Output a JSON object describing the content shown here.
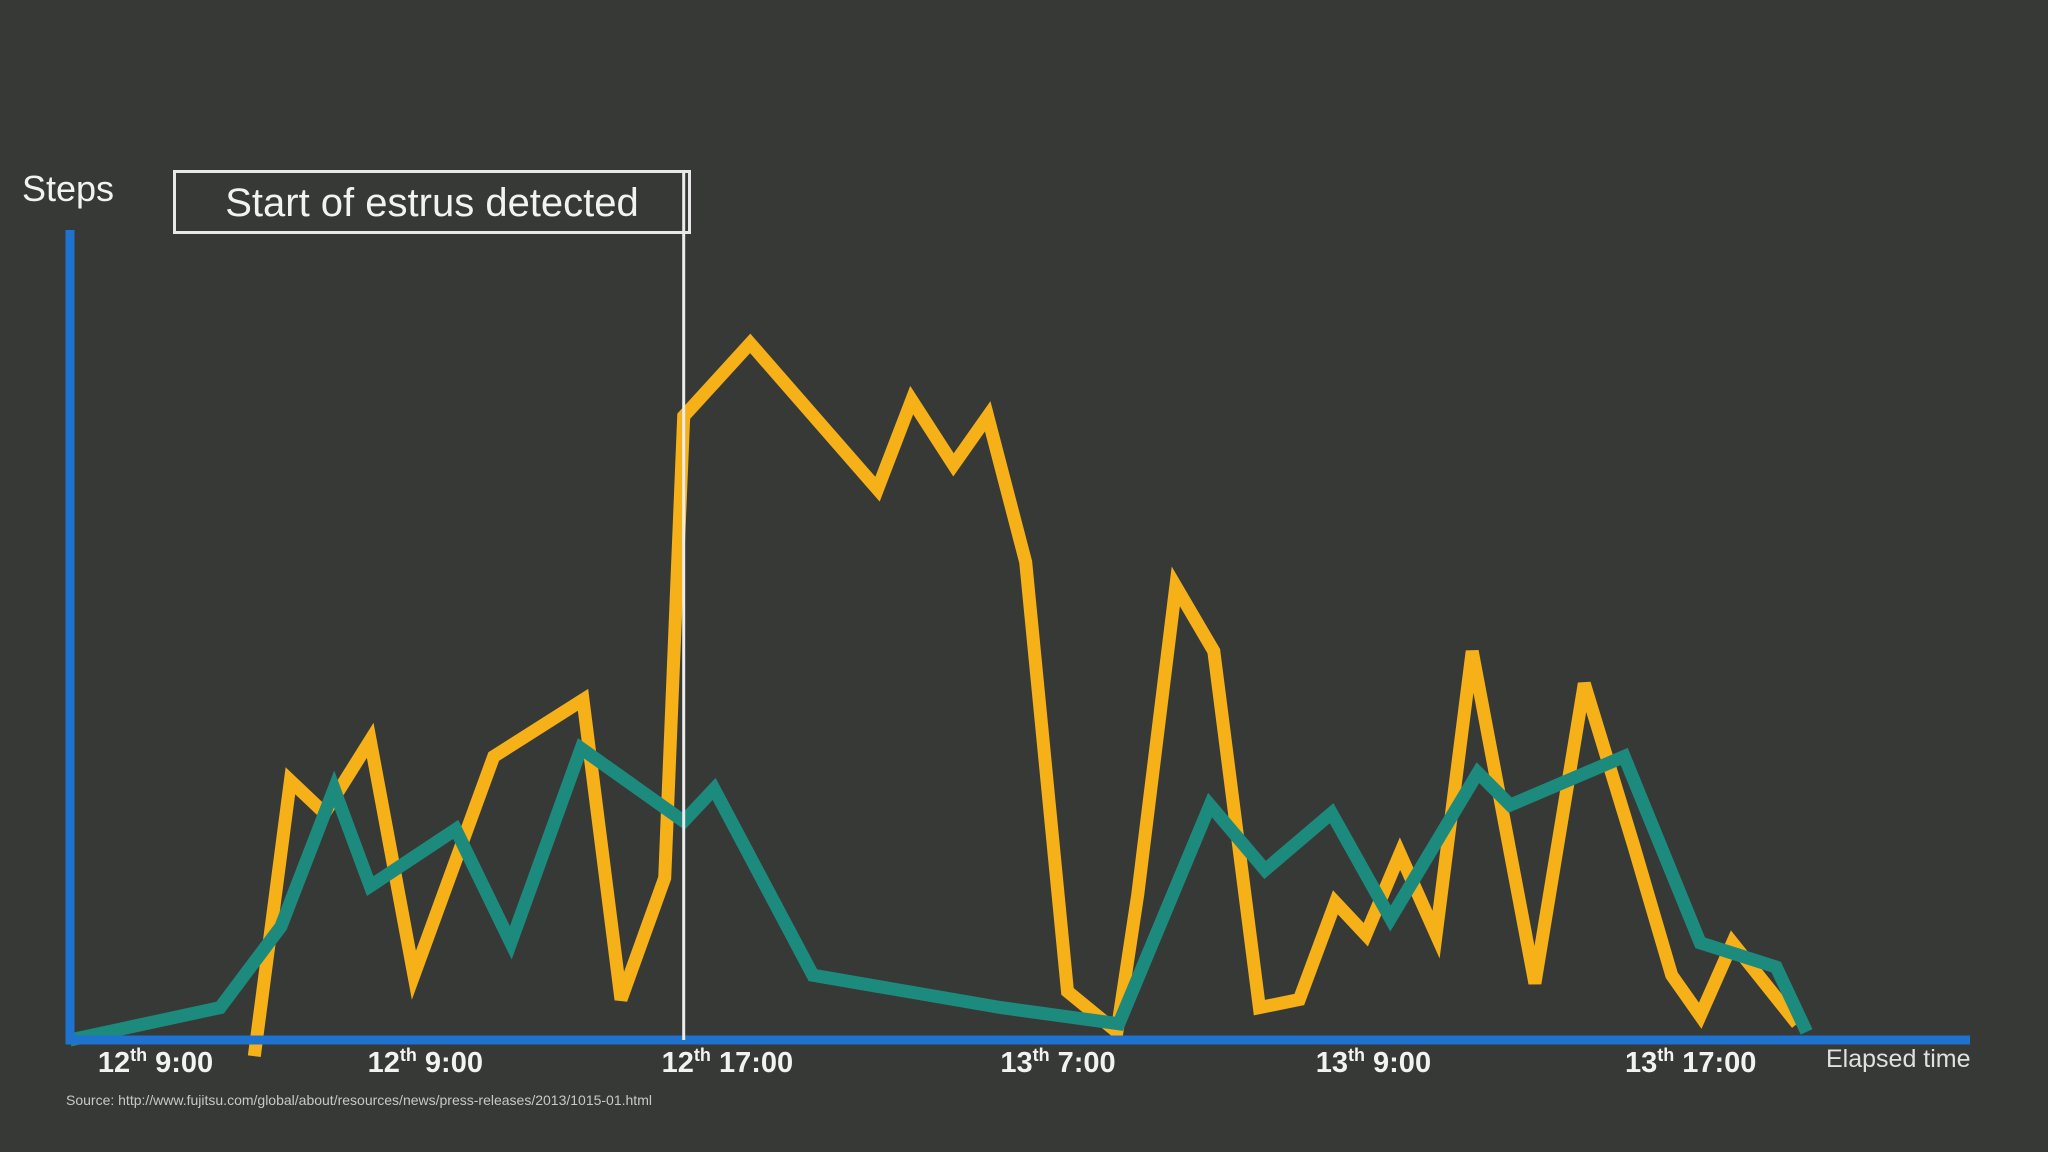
{
  "chart_data": {
    "type": "line",
    "title": "",
    "ylabel": "Steps",
    "xlabel": "Elapsed time",
    "annotation": "Start of estrus detected",
    "source": "Source: http://www.fujitsu.com/global/about/resources/news/press-releases/2013/1015-01.html",
    "ticks": [
      {
        "label": "12",
        "suffix": "th",
        "time": "9:00",
        "t": 0.045
      },
      {
        "label": "12",
        "suffix": "th",
        "time": "9:00",
        "t": 0.187
      },
      {
        "label": "12",
        "suffix": "th",
        "time": "17:00",
        "t": 0.346
      },
      {
        "label": "13",
        "suffix": "th",
        "time": "7:00",
        "t": 0.52
      },
      {
        "label": "13",
        "suffix": "th",
        "time": "9:00",
        "t": 0.686
      },
      {
        "label": "13",
        "suffix": "th",
        "time": "17:00",
        "t": 0.853
      }
    ],
    "annotation_t": 0.323,
    "x_range": [
      0,
      1
    ],
    "y_range": [
      0,
      100
    ],
    "grid": false,
    "legend": "none",
    "series": [
      {
        "color": "#f5b117",
        "points": [
          [
            0.097,
            -2
          ],
          [
            0.116,
            32
          ],
          [
            0.134,
            28
          ],
          [
            0.158,
            37
          ],
          [
            0.181,
            8
          ],
          [
            0.223,
            35
          ],
          [
            0.27,
            42
          ],
          [
            0.29,
            5
          ],
          [
            0.313,
            20
          ],
          [
            0.323,
            77
          ],
          [
            0.358,
            86
          ],
          [
            0.425,
            68
          ],
          [
            0.443,
            79
          ],
          [
            0.465,
            71
          ],
          [
            0.483,
            77
          ],
          [
            0.503,
            59
          ],
          [
            0.525,
            6
          ],
          [
            0.551,
            1
          ],
          [
            0.562,
            18
          ],
          [
            0.582,
            56
          ],
          [
            0.602,
            48
          ],
          [
            0.626,
            4
          ],
          [
            0.647,
            5
          ],
          [
            0.666,
            17
          ],
          [
            0.682,
            13
          ],
          [
            0.7,
            23
          ],
          [
            0.719,
            13
          ],
          [
            0.738,
            48
          ],
          [
            0.771,
            7
          ],
          [
            0.797,
            44
          ],
          [
            0.823,
            24
          ],
          [
            0.843,
            8
          ],
          [
            0.858,
            3
          ],
          [
            0.875,
            12
          ],
          [
            0.909,
            2
          ]
        ]
      },
      {
        "color": "#1d8a7e",
        "points": [
          [
            0.0,
            0
          ],
          [
            0.079,
            4
          ],
          [
            0.111,
            14
          ],
          [
            0.139,
            31
          ],
          [
            0.158,
            19
          ],
          [
            0.203,
            26
          ],
          [
            0.232,
            12
          ],
          [
            0.269,
            36
          ],
          [
            0.323,
            27
          ],
          [
            0.339,
            31
          ],
          [
            0.391,
            8
          ],
          [
            0.49,
            4
          ],
          [
            0.552,
            2
          ],
          [
            0.6,
            29
          ],
          [
            0.629,
            21
          ],
          [
            0.664,
            28
          ],
          [
            0.695,
            15
          ],
          [
            0.741,
            33
          ],
          [
            0.758,
            29
          ],
          [
            0.818,
            35
          ],
          [
            0.858,
            12
          ],
          [
            0.898,
            9
          ],
          [
            0.914,
            1
          ]
        ]
      }
    ]
  }
}
